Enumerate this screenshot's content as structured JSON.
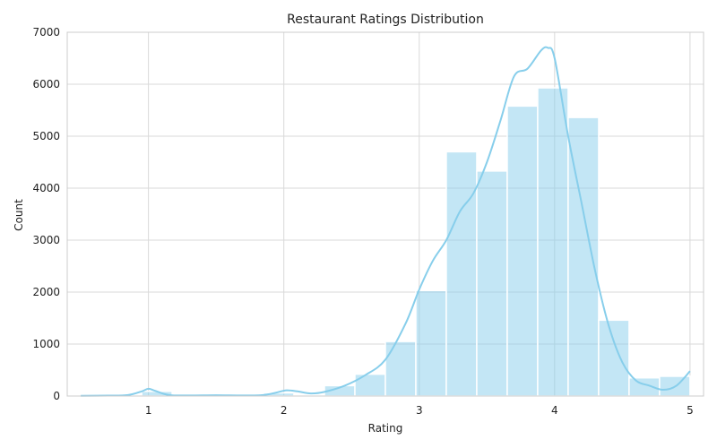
{
  "chart_data": {
    "type": "bar",
    "title": "Restaurant Ratings Distribution",
    "xlabel": "Rating",
    "ylabel": "Count",
    "xlim": [
      0.4,
      5.1
    ],
    "ylim": [
      0,
      7000
    ],
    "xticks": [
      1,
      2,
      3,
      4,
      5
    ],
    "yticks": [
      0,
      1000,
      2000,
      3000,
      4000,
      5000,
      6000,
      7000
    ],
    "grid": true,
    "bar_color": "#87ceeb",
    "kde_color": "#87ceeb",
    "bins": [
      {
        "x0": 0.5,
        "x1": 0.725,
        "count": 10
      },
      {
        "x0": 0.725,
        "x1": 0.95,
        "count": 0
      },
      {
        "x0": 0.95,
        "x1": 1.175,
        "count": 90
      },
      {
        "x0": 1.175,
        "x1": 1.4,
        "count": 0
      },
      {
        "x0": 1.4,
        "x1": 1.625,
        "count": 10
      },
      {
        "x0": 1.625,
        "x1": 1.85,
        "count": 0
      },
      {
        "x0": 1.85,
        "x1": 2.075,
        "count": 60
      },
      {
        "x0": 2.075,
        "x1": 2.3,
        "count": 20
      },
      {
        "x0": 2.3,
        "x1": 2.525,
        "count": 200
      },
      {
        "x0": 2.525,
        "x1": 2.75,
        "count": 420
      },
      {
        "x0": 2.75,
        "x1": 2.975,
        "count": 1050
      },
      {
        "x0": 2.975,
        "x1": 3.2,
        "count": 2030
      },
      {
        "x0": 3.2,
        "x1": 3.425,
        "count": 4700
      },
      {
        "x0": 3.425,
        "x1": 3.65,
        "count": 4330
      },
      {
        "x0": 3.65,
        "x1": 3.875,
        "count": 5580
      },
      {
        "x0": 3.875,
        "x1": 4.1,
        "count": 5930
      },
      {
        "x0": 4.1,
        "x1": 4.325,
        "count": 5360
      },
      {
        "x0": 4.325,
        "x1": 4.55,
        "count": 1460
      },
      {
        "x0": 4.55,
        "x1": 4.775,
        "count": 350
      },
      {
        "x0": 4.775,
        "x1": 5.0,
        "count": 380
      }
    ],
    "kde": {
      "x": [
        0.5,
        0.7,
        0.85,
        0.95,
        1.0,
        1.05,
        1.15,
        1.3,
        1.5,
        1.7,
        1.85,
        1.95,
        2.02,
        2.1,
        2.2,
        2.3,
        2.45,
        2.6,
        2.75,
        2.9,
        3.0,
        3.1,
        3.2,
        3.3,
        3.4,
        3.5,
        3.6,
        3.7,
        3.8,
        3.9,
        3.95,
        4.0,
        4.1,
        4.2,
        4.3,
        4.4,
        4.5,
        4.6,
        4.7,
        4.8,
        4.9,
        5.0
      ],
      "y": [
        5,
        8,
        20,
        90,
        140,
        100,
        20,
        10,
        15,
        10,
        20,
        70,
        110,
        90,
        50,
        80,
        200,
        400,
        700,
        1400,
        2050,
        2600,
        3000,
        3550,
        3900,
        4500,
        5300,
        6150,
        6300,
        6650,
        6700,
        6500,
        5000,
        3700,
        2400,
        1350,
        650,
        300,
        200,
        120,
        200,
        480
      ]
    }
  }
}
